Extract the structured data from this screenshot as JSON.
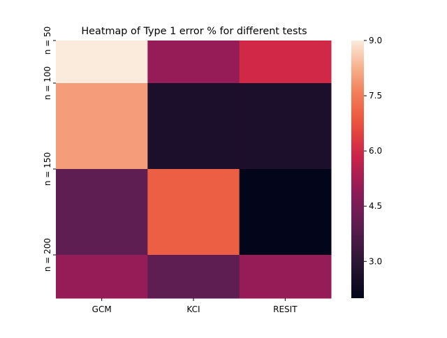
{
  "chart_data": {
    "type": "heatmap",
    "title": "Heatmap of Type 1 error % for different tests",
    "columns": [
      "GCM",
      "KCI",
      "RESIT"
    ],
    "row_tick_labels": [
      "n = 50",
      "n = 100",
      "n = 150",
      "n = 200"
    ],
    "values": [
      [
        9.0,
        5.0,
        6.0
      ],
      [
        8.0,
        2.6,
        2.6
      ],
      [
        4.0,
        7.0,
        2.0
      ],
      [
        5.0,
        4.0,
        5.0
      ]
    ],
    "colorbar": {
      "min": 2.0,
      "max": 9.0,
      "ticks": [
        "9.0",
        "7.5",
        "6.0",
        "4.5",
        "3.0"
      ],
      "colormap": "rocket"
    }
  }
}
